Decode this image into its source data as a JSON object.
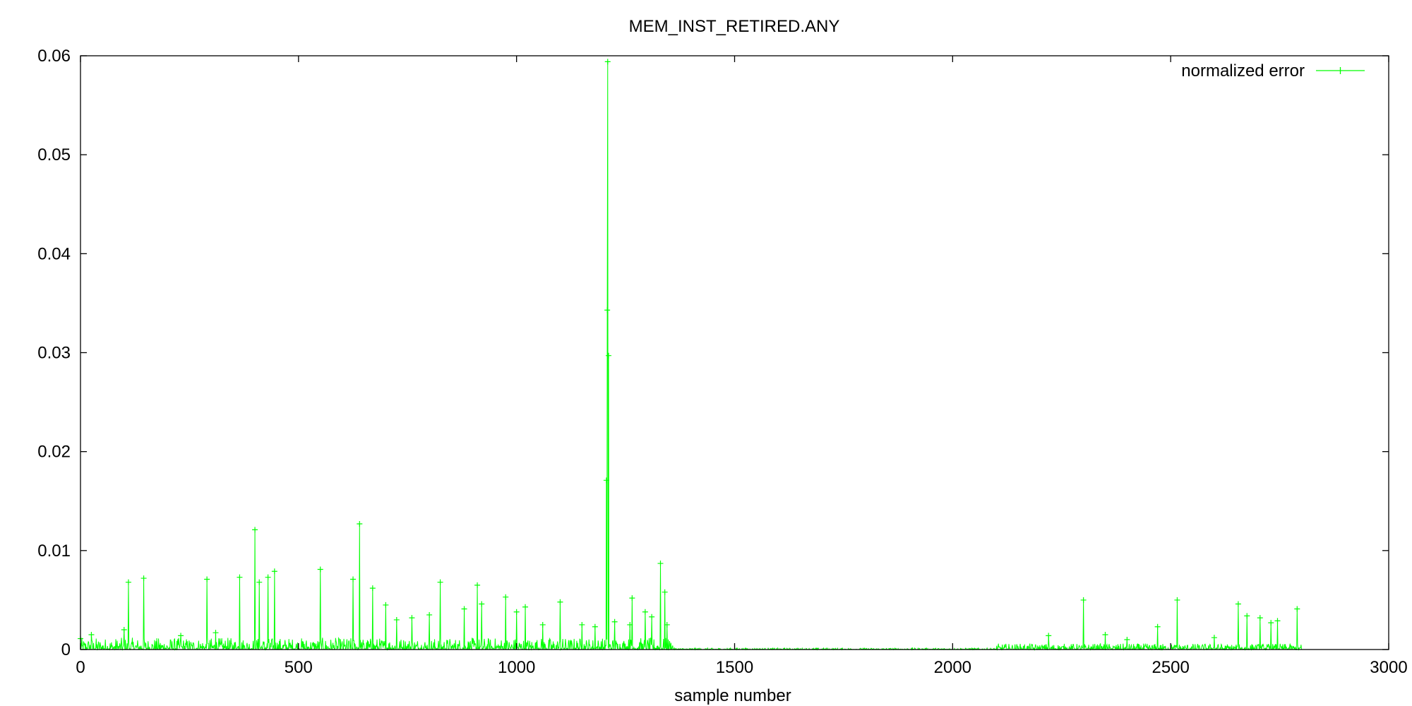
{
  "chart_data": {
    "type": "line",
    "title": "MEM_INST_RETIRED.ANY",
    "xlabel": "sample number",
    "ylabel": "",
    "xlim": [
      0,
      3000
    ],
    "ylim": [
      0,
      0.06
    ],
    "xticks": [
      0,
      500,
      1000,
      1500,
      2000,
      2500,
      3000
    ],
    "yticks": [
      0,
      0.01,
      0.02,
      0.03,
      0.04,
      0.05,
      0.06
    ],
    "xtick_labels": [
      "0",
      "500",
      "1000",
      "1500",
      "2000",
      "2500",
      "3000"
    ],
    "ytick_labels": [
      "0",
      "0.01",
      "0.02",
      "0.03",
      "0.04",
      "0.05",
      "0.06"
    ],
    "grid": false,
    "legend": {
      "position": "top-right"
    },
    "series": [
      {
        "name": "normalized error",
        "color": "#00ff00",
        "marker": "plus",
        "peaks": [
          [
            0,
            0.0011
          ],
          [
            25,
            0.0015
          ],
          [
            100,
            0.002
          ],
          [
            110,
            0.0068
          ],
          [
            145,
            0.0072
          ],
          [
            230,
            0.0014
          ],
          [
            290,
            0.0071
          ],
          [
            310,
            0.0017
          ],
          [
            365,
            0.0073
          ],
          [
            400,
            0.0121
          ],
          [
            410,
            0.0068
          ],
          [
            430,
            0.0073
          ],
          [
            445,
            0.0079
          ],
          [
            550,
            0.0081
          ],
          [
            625,
            0.0071
          ],
          [
            640,
            0.0127
          ],
          [
            670,
            0.0062
          ],
          [
            700,
            0.0045
          ],
          [
            725,
            0.003
          ],
          [
            760,
            0.0032
          ],
          [
            800,
            0.0035
          ],
          [
            825,
            0.0068
          ],
          [
            880,
            0.0041
          ],
          [
            910,
            0.0065
          ],
          [
            920,
            0.0046
          ],
          [
            975,
            0.0053
          ],
          [
            1000,
            0.0038
          ],
          [
            1020,
            0.0043
          ],
          [
            1060,
            0.0025
          ],
          [
            1100,
            0.0048
          ],
          [
            1150,
            0.0025
          ],
          [
            1180,
            0.0023
          ],
          [
            1206,
            0.0171
          ],
          [
            1208,
            0.0343
          ],
          [
            1209,
            0.0594
          ],
          [
            1211,
            0.0297
          ],
          [
            1225,
            0.0028
          ],
          [
            1260,
            0.0025
          ],
          [
            1265,
            0.0052
          ],
          [
            1295,
            0.0038
          ],
          [
            1310,
            0.0033
          ],
          [
            1330,
            0.0087
          ],
          [
            1340,
            0.0058
          ],
          [
            1345,
            0.0025
          ],
          [
            2220,
            0.0014
          ],
          [
            2300,
            0.005
          ],
          [
            2350,
            0.0015
          ],
          [
            2400,
            0.001
          ],
          [
            2470,
            0.0023
          ],
          [
            2515,
            0.005
          ],
          [
            2600,
            0.0012
          ],
          [
            2655,
            0.0046
          ],
          [
            2675,
            0.0034
          ],
          [
            2705,
            0.0032
          ],
          [
            2730,
            0.0027
          ],
          [
            2745,
            0.0029
          ],
          [
            2790,
            0.0041
          ]
        ],
        "active_ranges": [
          [
            0,
            1360,
            0.0012
          ],
          [
            1360,
            2100,
            0.00015
          ],
          [
            2100,
            2800,
            0.0006
          ]
        ],
        "x_max": 2800
      }
    ]
  }
}
